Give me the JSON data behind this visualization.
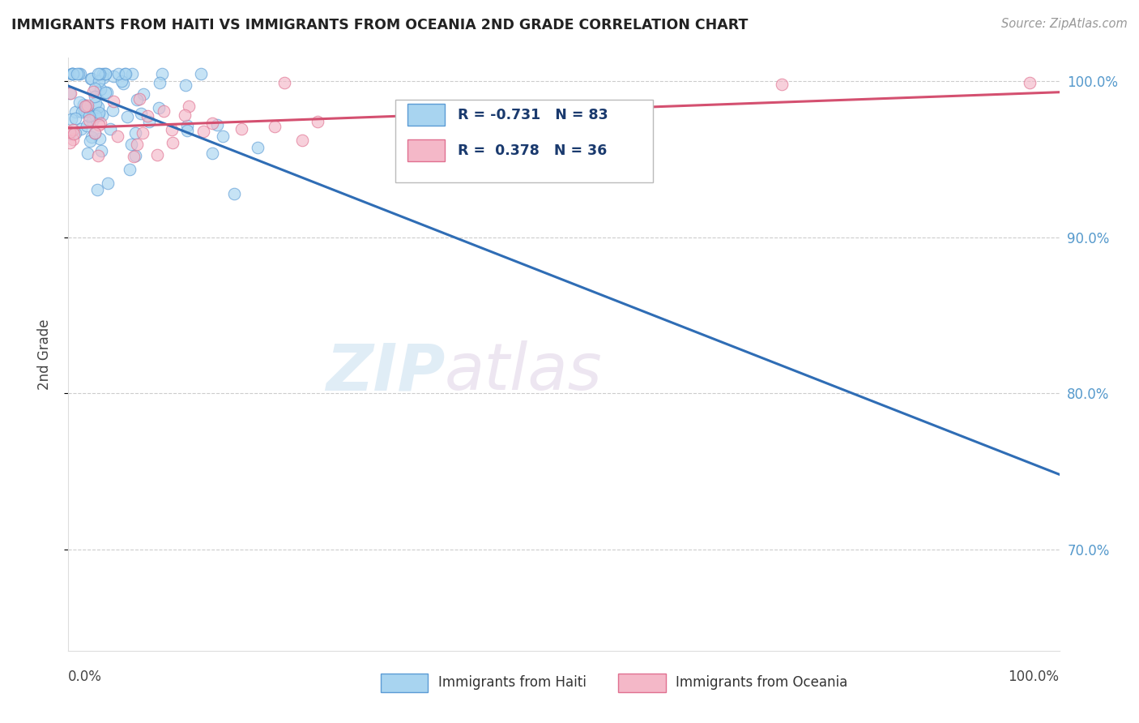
{
  "title": "IMMIGRANTS FROM HAITI VS IMMIGRANTS FROM OCEANIA 2ND GRADE CORRELATION CHART",
  "source": "Source: ZipAtlas.com",
  "xlabel_haiti": "Immigrants from Haiti",
  "xlabel_oceania": "Immigrants from Oceania",
  "ylabel": "2nd Grade",
  "r_haiti": -0.731,
  "n_haiti": 83,
  "r_oceania": 0.378,
  "n_oceania": 36,
  "haiti_color": "#a8d4f0",
  "haiti_edge_color": "#5b9bd5",
  "haiti_line_color": "#2f6db5",
  "oceania_color": "#f4b8c8",
  "oceania_edge_color": "#e07090",
  "oceania_line_color": "#d45070",
  "background_color": "#ffffff",
  "xlim": [
    0.0,
    1.0
  ],
  "ylim": [
    0.635,
    1.015
  ],
  "yticks": [
    0.7,
    0.8,
    0.9,
    1.0
  ],
  "ytick_labels": [
    "70.0%",
    "80.0%",
    "90.0%",
    "100.0%"
  ],
  "xtick_left": "0.0%",
  "xtick_right": "100.0%",
  "haiti_line_x0": 0.0,
  "haiti_line_y0": 0.997,
  "haiti_line_x1": 1.0,
  "haiti_line_y1": 0.748,
  "oceania_line_x0": 0.0,
  "oceania_line_y0": 0.97,
  "oceania_line_x1": 1.0,
  "oceania_line_y1": 0.993
}
